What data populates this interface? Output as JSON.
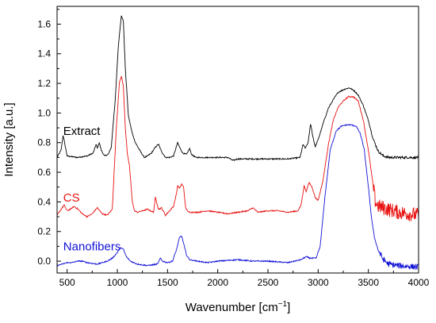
{
  "chart_data": {
    "type": "line",
    "title": "",
    "xlabel": "Wavenumber [cm",
    "xlabel_sup": "−1",
    "xlabel_close": "]",
    "ylabel": "Intensity [a.u.]",
    "xlim": [
      400,
      4000
    ],
    "ylim": [
      -0.08,
      1.72
    ],
    "grid": false,
    "legend": "inline labels at left",
    "x_ticks": [
      500,
      1000,
      1500,
      2000,
      2500,
      3000,
      3500,
      4000
    ],
    "x_tick_labels": [
      "500",
      "1000",
      "1500",
      "2000",
      "2500",
      "3000",
      "3500",
      "4000"
    ],
    "y_ticks": [
      0.0,
      0.2,
      0.4,
      0.6,
      0.8,
      1.0,
      1.2,
      1.4,
      1.6
    ],
    "y_tick_labels": [
      "0.0",
      "0.2",
      "0.4",
      "0.6",
      "0.8",
      "1.0",
      "1.2",
      "1.4",
      "1.6"
    ],
    "series": [
      {
        "name": "Extract",
        "color": "#000000",
        "label_at": [
          430,
          0.88
        ],
        "noise_above": 3520,
        "noise_amp": 0.008,
        "points": [
          [
            400,
            0.7
          ],
          [
            440,
            0.75
          ],
          [
            460,
            0.85
          ],
          [
            475,
            0.8
          ],
          [
            500,
            0.71
          ],
          [
            600,
            0.7
          ],
          [
            700,
            0.71
          ],
          [
            760,
            0.73
          ],
          [
            790,
            0.79
          ],
          [
            800,
            0.76
          ],
          [
            820,
            0.8
          ],
          [
            840,
            0.75
          ],
          [
            870,
            0.71
          ],
          [
            910,
            0.72
          ],
          [
            940,
            0.77
          ],
          [
            980,
            1.1
          ],
          [
            1010,
            1.45
          ],
          [
            1040,
            1.66
          ],
          [
            1060,
            1.62
          ],
          [
            1080,
            1.3
          ],
          [
            1110,
            0.98
          ],
          [
            1150,
            0.86
          ],
          [
            1180,
            0.8
          ],
          [
            1230,
            0.74
          ],
          [
            1270,
            0.7
          ],
          [
            1300,
            0.71
          ],
          [
            1340,
            0.73
          ],
          [
            1380,
            0.77
          ],
          [
            1410,
            0.79
          ],
          [
            1440,
            0.74
          ],
          [
            1480,
            0.7
          ],
          [
            1520,
            0.7
          ],
          [
            1560,
            0.71
          ],
          [
            1600,
            0.8
          ],
          [
            1620,
            0.77
          ],
          [
            1650,
            0.73
          ],
          [
            1690,
            0.72
          ],
          [
            1720,
            0.76
          ],
          [
            1740,
            0.72
          ],
          [
            1780,
            0.7
          ],
          [
            1900,
            0.7
          ],
          [
            2000,
            0.7
          ],
          [
            2100,
            0.7
          ],
          [
            2150,
            0.68
          ],
          [
            2200,
            0.69
          ],
          [
            2350,
            0.69
          ],
          [
            2500,
            0.69
          ],
          [
            2700,
            0.69
          ],
          [
            2820,
            0.7
          ],
          [
            2850,
            0.79
          ],
          [
            2870,
            0.76
          ],
          [
            2900,
            0.8
          ],
          [
            2925,
            0.93
          ],
          [
            2945,
            0.85
          ],
          [
            2970,
            0.77
          ],
          [
            3000,
            0.82
          ],
          [
            3050,
            0.93
          ],
          [
            3100,
            1.03
          ],
          [
            3150,
            1.09
          ],
          [
            3200,
            1.14
          ],
          [
            3260,
            1.16
          ],
          [
            3310,
            1.17
          ],
          [
            3360,
            1.15
          ],
          [
            3400,
            1.12
          ],
          [
            3450,
            1.05
          ],
          [
            3500,
            0.95
          ],
          [
            3550,
            0.82
          ],
          [
            3600,
            0.74
          ],
          [
            3650,
            0.71
          ],
          [
            3700,
            0.7
          ],
          [
            4000,
            0.7
          ]
        ]
      },
      {
        "name": "CS",
        "color": "#e8110f",
        "label_at": [
          430,
          0.43
        ],
        "noise_above": 3550,
        "noise_amp": 0.05,
        "points": [
          [
            400,
            0.31
          ],
          [
            440,
            0.35
          ],
          [
            470,
            0.38
          ],
          [
            500,
            0.34
          ],
          [
            530,
            0.35
          ],
          [
            570,
            0.37
          ],
          [
            610,
            0.35
          ],
          [
            650,
            0.32
          ],
          [
            700,
            0.3
          ],
          [
            750,
            0.32
          ],
          [
            800,
            0.36
          ],
          [
            850,
            0.32
          ],
          [
            900,
            0.31
          ],
          [
            950,
            0.35
          ],
          [
            990,
            0.9
          ],
          [
            1020,
            1.2
          ],
          [
            1040,
            1.25
          ],
          [
            1060,
            1.18
          ],
          [
            1080,
            0.9
          ],
          [
            1100,
            0.72
          ],
          [
            1120,
            0.65
          ],
          [
            1150,
            0.4
          ],
          [
            1170,
            0.34
          ],
          [
            1200,
            0.33
          ],
          [
            1250,
            0.34
          ],
          [
            1300,
            0.35
          ],
          [
            1330,
            0.34
          ],
          [
            1360,
            0.33
          ],
          [
            1380,
            0.43
          ],
          [
            1410,
            0.35
          ],
          [
            1440,
            0.36
          ],
          [
            1480,
            0.31
          ],
          [
            1520,
            0.34
          ],
          [
            1560,
            0.37
          ],
          [
            1590,
            0.46
          ],
          [
            1600,
            0.51
          ],
          [
            1620,
            0.49
          ],
          [
            1640,
            0.52
          ],
          [
            1660,
            0.5
          ],
          [
            1680,
            0.36
          ],
          [
            1710,
            0.33
          ],
          [
            1800,
            0.33
          ],
          [
            1900,
            0.34
          ],
          [
            2000,
            0.33
          ],
          [
            2100,
            0.32
          ],
          [
            2200,
            0.33
          ],
          [
            2300,
            0.34
          ],
          [
            2350,
            0.36
          ],
          [
            2400,
            0.33
          ],
          [
            2500,
            0.34
          ],
          [
            2600,
            0.34
          ],
          [
            2700,
            0.33
          ],
          [
            2800,
            0.34
          ],
          [
            2830,
            0.38
          ],
          [
            2860,
            0.51
          ],
          [
            2880,
            0.47
          ],
          [
            2910,
            0.53
          ],
          [
            2940,
            0.5
          ],
          [
            2970,
            0.43
          ],
          [
            3000,
            0.41
          ],
          [
            3050,
            0.55
          ],
          [
            3100,
            0.78
          ],
          [
            3150,
            0.95
          ],
          [
            3200,
            1.04
          ],
          [
            3250,
            1.08
          ],
          [
            3300,
            1.11
          ],
          [
            3350,
            1.11
          ],
          [
            3400,
            1.08
          ],
          [
            3450,
            0.95
          ],
          [
            3500,
            0.75
          ],
          [
            3540,
            0.55
          ],
          [
            3570,
            0.4
          ],
          [
            3600,
            0.37
          ],
          [
            3700,
            0.35
          ],
          [
            3800,
            0.33
          ],
          [
            3900,
            0.32
          ],
          [
            4000,
            0.31
          ]
        ]
      },
      {
        "name": "Nanofibers",
        "color": "#1111d8",
        "label_at": [
          430,
          0.1
        ],
        "noise_above": 3600,
        "noise_amp": 0.02,
        "points": [
          [
            400,
            -0.03
          ],
          [
            450,
            -0.02
          ],
          [
            500,
            -0.01
          ],
          [
            550,
            -0.01
          ],
          [
            600,
            0.0
          ],
          [
            650,
            0.0
          ],
          [
            700,
            -0.01
          ],
          [
            800,
            -0.02
          ],
          [
            900,
            0.0
          ],
          [
            950,
            0.02
          ],
          [
            990,
            0.05
          ],
          [
            1020,
            0.08
          ],
          [
            1040,
            0.09
          ],
          [
            1060,
            0.08
          ],
          [
            1090,
            0.03
          ],
          [
            1130,
            0.0
          ],
          [
            1200,
            -0.02
          ],
          [
            1300,
            -0.03
          ],
          [
            1400,
            -0.02
          ],
          [
            1430,
            0.02
          ],
          [
            1450,
            0.0
          ],
          [
            1500,
            -0.01
          ],
          [
            1550,
            0.0
          ],
          [
            1590,
            0.08
          ],
          [
            1620,
            0.16
          ],
          [
            1640,
            0.17
          ],
          [
            1660,
            0.12
          ],
          [
            1690,
            0.04
          ],
          [
            1720,
            0.01
          ],
          [
            1800,
            0.0
          ],
          [
            1900,
            -0.01
          ],
          [
            2000,
            0.0
          ],
          [
            2200,
            0.01
          ],
          [
            2350,
            0.0
          ],
          [
            2500,
            0.0
          ],
          [
            2700,
            -0.01
          ],
          [
            2830,
            0.01
          ],
          [
            2880,
            0.03
          ],
          [
            2920,
            0.02
          ],
          [
            2980,
            0.02
          ],
          [
            3020,
            0.1
          ],
          [
            3070,
            0.45
          ],
          [
            3120,
            0.75
          ],
          [
            3180,
            0.88
          ],
          [
            3230,
            0.91
          ],
          [
            3280,
            0.92
          ],
          [
            3330,
            0.92
          ],
          [
            3380,
            0.91
          ],
          [
            3420,
            0.86
          ],
          [
            3460,
            0.75
          ],
          [
            3500,
            0.5
          ],
          [
            3530,
            0.3
          ],
          [
            3560,
            0.16
          ],
          [
            3600,
            0.07
          ],
          [
            3650,
            0.01
          ],
          [
            3700,
            -0.02
          ],
          [
            3800,
            -0.03
          ],
          [
            4000,
            -0.04
          ]
        ]
      }
    ]
  }
}
